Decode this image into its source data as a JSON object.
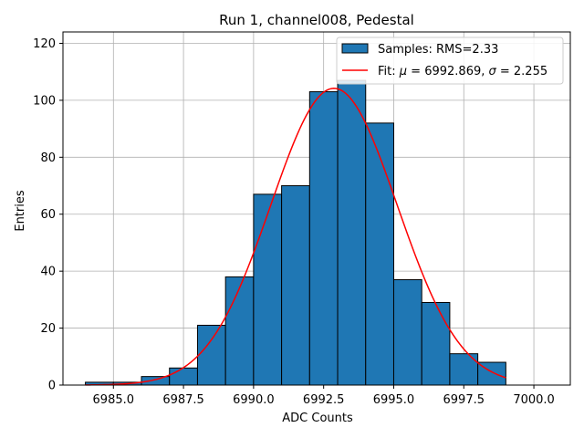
{
  "chart_data": {
    "type": "bar",
    "title": "Run 1, channel008, Pedestal",
    "xlabel": "ADC Counts",
    "ylabel": "Entries",
    "xlim": [
      6983.2,
      7001.3
    ],
    "ylim": [
      0,
      124
    ],
    "grid": true,
    "bar_color": "#1f77b4",
    "fit_color": "#ff0000",
    "bins": [
      {
        "left": 6984,
        "right": 6985,
        "count": 1
      },
      {
        "left": 6985,
        "right": 6986,
        "count": 1
      },
      {
        "left": 6986,
        "right": 6987,
        "count": 3
      },
      {
        "left": 6987,
        "right": 6988,
        "count": 6
      },
      {
        "left": 6988,
        "right": 6989,
        "count": 21
      },
      {
        "left": 6989,
        "right": 6990,
        "count": 38
      },
      {
        "left": 6990,
        "right": 6991,
        "count": 67
      },
      {
        "left": 6991,
        "right": 6992,
        "count": 70
      },
      {
        "left": 6992,
        "right": 6993,
        "count": 103
      },
      {
        "left": 6993,
        "right": 6994,
        "count": 107
      },
      {
        "left": 6994,
        "right": 6995,
        "count": 92
      },
      {
        "left": 6995,
        "right": 6996,
        "count": 37
      },
      {
        "left": 6996,
        "right": 6997,
        "count": 29
      },
      {
        "left": 6997,
        "right": 6998,
        "count": 11
      },
      {
        "left": 6998,
        "right": 6999,
        "count": 8
      }
    ],
    "fit": {
      "mu": 6992.869,
      "sigma": 2.255,
      "amplitude": 104.2,
      "x_start": 6984.0,
      "x_end": 6999.0
    },
    "x_ticks": [
      6985.0,
      6987.5,
      6990.0,
      6992.5,
      6995.0,
      6997.5,
      7000.0
    ],
    "x_tick_labels": [
      "6985.0",
      "6987.5",
      "6990.0",
      "6992.5",
      "6995.0",
      "6997.5",
      "7000.0"
    ],
    "y_ticks": [
      0,
      20,
      40,
      60,
      80,
      100,
      120
    ],
    "y_tick_labels": [
      "0",
      "20",
      "40",
      "60",
      "80",
      "100",
      "120"
    ],
    "legend": {
      "position": "upper-right",
      "samples_label": "Samples: RMS=2.33",
      "fit_label_prefix": "Fit: ",
      "fit_mu_symbol": "μ",
      "fit_mu_text": " = 6992.869, ",
      "fit_sigma_symbol": "σ",
      "fit_sigma_text": " = 2.255"
    }
  }
}
